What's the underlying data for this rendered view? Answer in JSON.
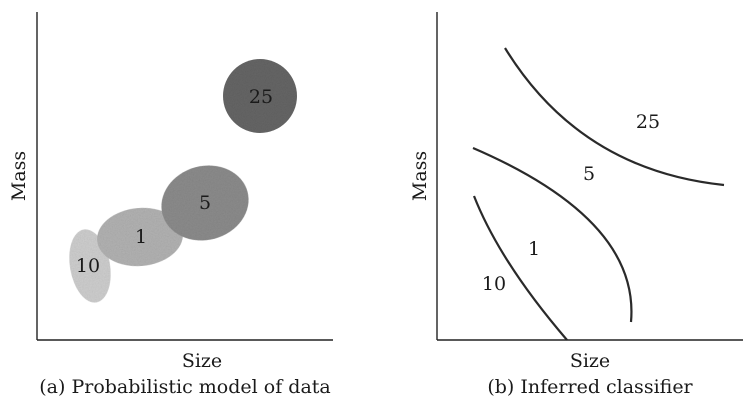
{
  "panel_a": {
    "caption": "(a) Probabilistic model of data",
    "xlabel": "Size",
    "ylabel": "Mass",
    "clusters": [
      {
        "label": "10",
        "color": "#cfcfcf"
      },
      {
        "label": "1",
        "color": "#b3b3b3"
      },
      {
        "label": "5",
        "color": "#8c8c8c"
      },
      {
        "label": "25",
        "color": "#666666"
      }
    ]
  },
  "panel_b": {
    "caption": "(b) Inferred classifier",
    "xlabel": "Size",
    "ylabel": "Mass",
    "region_labels": [
      "10",
      "1",
      "5",
      "25"
    ]
  }
}
